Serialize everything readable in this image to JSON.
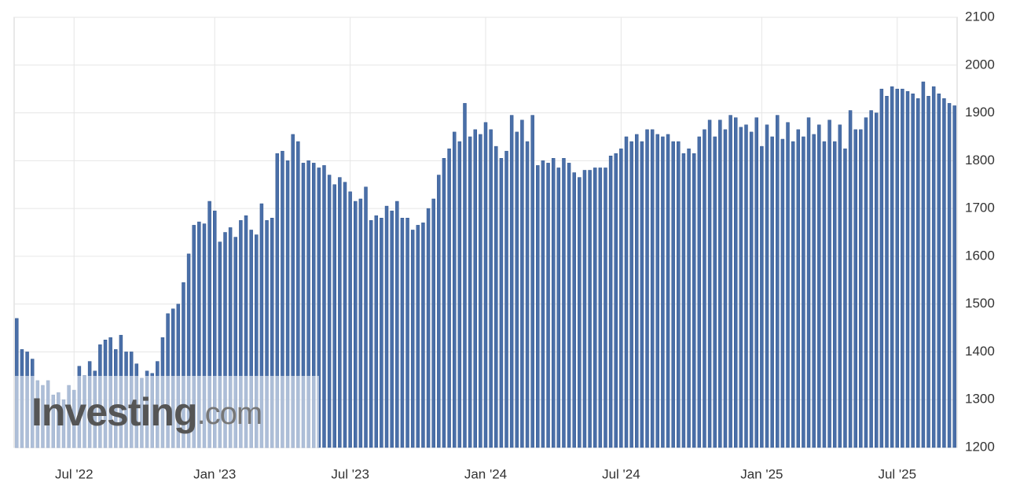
{
  "chart_data": {
    "type": "bar",
    "watermark": {
      "brand": "Investing",
      "suffix": ".com"
    },
    "categories": [
      null,
      null,
      null,
      null,
      null,
      null,
      null,
      null,
      null,
      null,
      null,
      "Jul '22",
      null,
      null,
      null,
      null,
      null,
      null,
      null,
      null,
      null,
      null,
      null,
      null,
      null,
      null,
      null,
      null,
      null,
      null,
      null,
      null,
      null,
      null,
      null,
      null,
      null,
      null,
      "Jan '23",
      null,
      null,
      null,
      null,
      null,
      null,
      null,
      null,
      null,
      null,
      null,
      null,
      null,
      null,
      null,
      null,
      null,
      null,
      null,
      null,
      null,
      null,
      null,
      null,
      null,
      "Jul '23",
      null,
      null,
      null,
      null,
      null,
      null,
      null,
      null,
      null,
      null,
      null,
      null,
      null,
      null,
      null,
      null,
      null,
      null,
      null,
      null,
      null,
      null,
      null,
      null,
      null,
      "Jan '24",
      null,
      null,
      null,
      null,
      null,
      null,
      null,
      null,
      null,
      null,
      null,
      null,
      null,
      null,
      null,
      null,
      null,
      null,
      null,
      null,
      null,
      null,
      null,
      null,
      null,
      "Jul '24",
      null,
      null,
      null,
      null,
      null,
      null,
      null,
      null,
      null,
      null,
      null,
      null,
      null,
      null,
      null,
      null,
      null,
      null,
      null,
      null,
      null,
      null,
      null,
      null,
      null,
      null,
      "Jan '25",
      null,
      null,
      null,
      null,
      null,
      null,
      null,
      null,
      null,
      null,
      null,
      null,
      null,
      null,
      null,
      null,
      null,
      null,
      null,
      null,
      null,
      null,
      null,
      null,
      null,
      "Jul '25",
      null,
      null,
      null,
      null,
      null,
      null,
      null,
      null,
      null,
      null,
      null
    ],
    "values": [
      1470,
      1405,
      1400,
      1385,
      1340,
      1330,
      1340,
      1310,
      1315,
      1300,
      1330,
      1320,
      1370,
      1350,
      1380,
      1360,
      1415,
      1425,
      1430,
      1405,
      1435,
      1400,
      1400,
      1375,
      1345,
      1360,
      1355,
      1380,
      1430,
      1480,
      1490,
      1500,
      1545,
      1605,
      1665,
      1672,
      1668,
      1715,
      1695,
      1630,
      1650,
      1660,
      1640,
      1675,
      1685,
      1655,
      1645,
      1710,
      1675,
      1680,
      1815,
      1820,
      1800,
      1855,
      1840,
      1795,
      1800,
      1795,
      1785,
      1790,
      1770,
      1750,
      1765,
      1755,
      1735,
      1715,
      1720,
      1745,
      1675,
      1685,
      1680,
      1705,
      1695,
      1715,
      1680,
      1680,
      1655,
      1665,
      1670,
      1700,
      1720,
      1770,
      1805,
      1825,
      1860,
      1840,
      1920,
      1850,
      1865,
      1855,
      1880,
      1865,
      1830,
      1805,
      1820,
      1895,
      1860,
      1885,
      1840,
      1895,
      1790,
      1800,
      1795,
      1805,
      1785,
      1805,
      1795,
      1775,
      1765,
      1780,
      1780,
      1785,
      1785,
      1785,
      1810,
      1815,
      1825,
      1850,
      1840,
      1855,
      1840,
      1865,
      1865,
      1855,
      1850,
      1855,
      1840,
      1840,
      1815,
      1825,
      1815,
      1850,
      1865,
      1885,
      1850,
      1885,
      1865,
      1895,
      1890,
      1870,
      1875,
      1860,
      1890,
      1830,
      1875,
      1850,
      1895,
      1845,
      1880,
      1840,
      1865,
      1850,
      1890,
      1855,
      1875,
      1840,
      1885,
      1840,
      1875,
      1825,
      1905,
      1865,
      1865,
      1890,
      1905,
      1900,
      1950,
      1935,
      1955,
      1950,
      1950,
      1945,
      1940,
      1930,
      1965,
      1935,
      1955,
      1940,
      1930,
      1920,
      1915
    ],
    "color": "#4a6fa8",
    "ylim": [
      1200,
      2100
    ],
    "yticks": [
      1200,
      1300,
      1400,
      1500,
      1600,
      1700,
      1800,
      1900,
      2000,
      2100
    ],
    "grid": true
  }
}
